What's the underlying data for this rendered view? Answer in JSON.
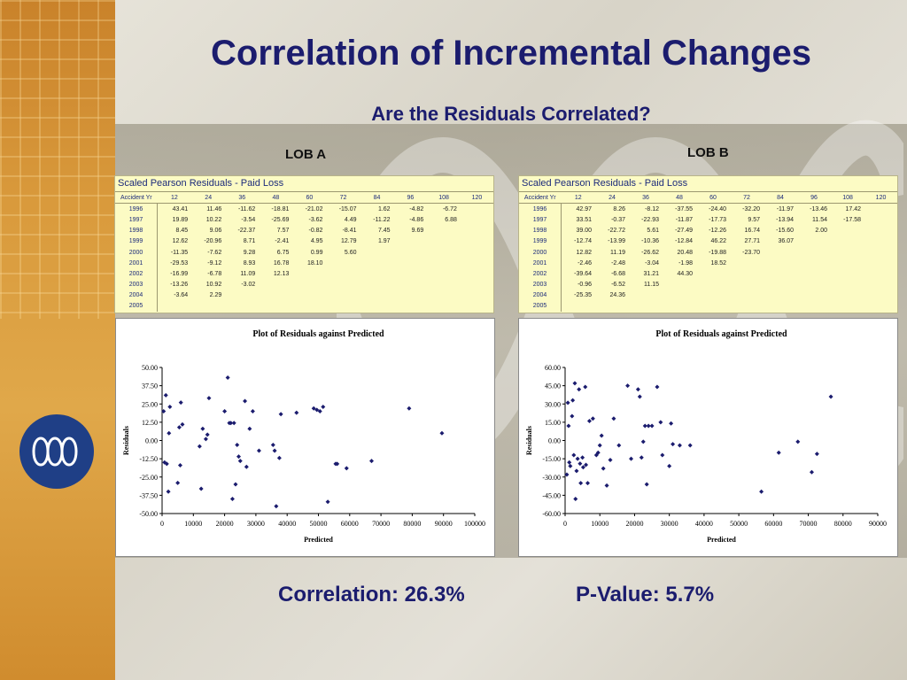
{
  "slide": {
    "title": "Correlation of Incremental Changes",
    "subtitle": "Are the Residuals Correlated?",
    "correlation_text": "Correlation:  26.3%",
    "pvalue_text": "P-Value:  5.7%",
    "logo_icon": "wave-logo-icon",
    "colors": {
      "title": "#1b1c6e",
      "table_bg": "#fcfbc4",
      "marker": "#1b1c6e",
      "logo": "#1f3f86"
    }
  },
  "lob_a": {
    "label": "LOB A",
    "table": {
      "title": "Scaled Pearson Residuals - Paid Loss",
      "corner": "Accident Yr",
      "columns": [
        "12",
        "24",
        "36",
        "48",
        "60",
        "72",
        "84",
        "96",
        "108",
        "120"
      ],
      "rows": [
        {
          "year": "1996",
          "values": [
            "43.41",
            "11.46",
            "-11.62",
            "-18.81",
            "-21.02",
            "-15.07",
            "1.62",
            "-4.82",
            "-6.72",
            ""
          ]
        },
        {
          "year": "1997",
          "values": [
            "19.89",
            "10.22",
            "-3.54",
            "-25.69",
            "-3.62",
            "4.49",
            "-11.22",
            "-4.86",
            "6.88",
            ""
          ]
        },
        {
          "year": "1998",
          "values": [
            "8.45",
            "9.06",
            "-22.37",
            "7.57",
            "-0.82",
            "-8.41",
            "7.45",
            "9.69",
            "",
            ""
          ]
        },
        {
          "year": "1999",
          "values": [
            "12.62",
            "-20.96",
            "8.71",
            "-2.41",
            "4.95",
            "12.79",
            "1.97",
            "",
            "",
            ""
          ]
        },
        {
          "year": "2000",
          "values": [
            "-11.35",
            "-7.62",
            "9.28",
            "6.75",
            "0.99",
            "5.60",
            "",
            "",
            "",
            ""
          ]
        },
        {
          "year": "2001",
          "values": [
            "-29.53",
            "-9.12",
            "8.93",
            "16.78",
            "18.10",
            "",
            "",
            "",
            "",
            ""
          ]
        },
        {
          "year": "2002",
          "values": [
            "-16.99",
            "-6.78",
            "11.09",
            "12.13",
            "",
            "",
            "",
            "",
            "",
            ""
          ]
        },
        {
          "year": "2003",
          "values": [
            "-13.26",
            "10.92",
            "-3.02",
            "",
            "",
            "",
            "",
            "",
            "",
            ""
          ]
        },
        {
          "year": "2004",
          "values": [
            "-3.64",
            "2.29",
            "",
            "",
            "",
            "",
            "",
            "",
            "",
            ""
          ]
        },
        {
          "year": "2005",
          "values": [
            "",
            "",
            "",
            "",
            "",
            "",
            "",
            "",
            "",
            ""
          ]
        }
      ]
    }
  },
  "lob_b": {
    "label": "LOB B",
    "table": {
      "title": "Scaled Pearson Residuals - Paid Loss",
      "corner": "Accident Yr",
      "columns": [
        "12",
        "24",
        "36",
        "48",
        "60",
        "72",
        "84",
        "96",
        "108",
        "120"
      ],
      "rows": [
        {
          "year": "1996",
          "values": [
            "42.97",
            "8.26",
            "-8.12",
            "-37.55",
            "-24.40",
            "-32.20",
            "-11.97",
            "-13.46",
            "17.42",
            ""
          ]
        },
        {
          "year": "1997",
          "values": [
            "33.51",
            "-0.37",
            "-22.93",
            "-11.87",
            "-17.73",
            "9.57",
            "-13.94",
            "11.54",
            "-17.58",
            ""
          ]
        },
        {
          "year": "1998",
          "values": [
            "39.00",
            "-22.72",
            "5.61",
            "-27.49",
            "-12.26",
            "16.74",
            "-15.60",
            "2.00",
            "",
            ""
          ]
        },
        {
          "year": "1999",
          "values": [
            "-12.74",
            "-13.99",
            "-10.36",
            "-12.84",
            "46.22",
            "27.71",
            "36.07",
            "",
            "",
            ""
          ]
        },
        {
          "year": "2000",
          "values": [
            "12.82",
            "11.19",
            "-26.62",
            "20.48",
            "-19.88",
            "-23.70",
            "",
            "",
            "",
            ""
          ]
        },
        {
          "year": "2001",
          "values": [
            "-2.46",
            "-2.48",
            "-3.04",
            "-1.98",
            "18.52",
            "",
            "",
            "",
            "",
            ""
          ]
        },
        {
          "year": "2002",
          "values": [
            "-39.64",
            "-6.68",
            "31.21",
            "44.30",
            "",
            "",
            "",
            "",
            "",
            ""
          ]
        },
        {
          "year": "2003",
          "values": [
            "-0.96",
            "-6.52",
            "11.15",
            "",
            "",
            "",
            "",
            "",
            "",
            ""
          ]
        },
        {
          "year": "2004",
          "values": [
            "-25.35",
            "24.36",
            "",
            "",
            "",
            "",
            "",
            "",
            "",
            ""
          ]
        },
        {
          "year": "2005",
          "values": [
            "",
            "",
            "",
            "",
            "",
            "",
            "",
            "",
            "",
            ""
          ]
        }
      ]
    }
  },
  "chart_data": [
    {
      "type": "scatter",
      "title": "Plot of Residuals against Predicted",
      "xlabel": "Predicted",
      "ylabel": "Residuals",
      "xlim": [
        0,
        100000
      ],
      "ylim": [
        -50,
        50
      ],
      "x_ticks": [
        "0",
        "10000",
        "20000",
        "30000",
        "40000",
        "50000",
        "60000",
        "70000",
        "80000",
        "90000",
        "100000"
      ],
      "y_ticks": [
        "50.00",
        "37.50",
        "25.00",
        "12.50",
        "0.00",
        "-12.50",
        "-25.00",
        "-37.50",
        "-50.00"
      ],
      "grid": false,
      "points": [
        [
          500,
          20
        ],
        [
          800,
          -15
        ],
        [
          1200,
          31
        ],
        [
          1500,
          -16
        ],
        [
          2000,
          -35
        ],
        [
          2200,
          5
        ],
        [
          2500,
          23
        ],
        [
          5000,
          -29
        ],
        [
          5500,
          9
        ],
        [
          6000,
          26
        ],
        [
          6500,
          11
        ],
        [
          5800,
          -17
        ],
        [
          12000,
          -4
        ],
        [
          12500,
          -33
        ],
        [
          13000,
          8
        ],
        [
          14000,
          1
        ],
        [
          15000,
          29
        ],
        [
          14500,
          4
        ],
        [
          20000,
          20
        ],
        [
          21000,
          43
        ],
        [
          21500,
          12
        ],
        [
          22000,
          12
        ],
        [
          22500,
          -40
        ],
        [
          23000,
          12
        ],
        [
          23500,
          -30
        ],
        [
          24000,
          -3
        ],
        [
          24500,
          -11
        ],
        [
          25000,
          -14
        ],
        [
          26500,
          27
        ],
        [
          27000,
          -18
        ],
        [
          28000,
          8
        ],
        [
          29000,
          20
        ],
        [
          31000,
          -7
        ],
        [
          35500,
          -3
        ],
        [
          36000,
          -7
        ],
        [
          36500,
          -45
        ],
        [
          37500,
          -12
        ],
        [
          38000,
          18
        ],
        [
          43000,
          19
        ],
        [
          48500,
          22
        ],
        [
          49500,
          21
        ],
        [
          50500,
          20
        ],
        [
          51500,
          23
        ],
        [
          53000,
          -42
        ],
        [
          55500,
          -16
        ],
        [
          56000,
          -16
        ],
        [
          59000,
          -19
        ],
        [
          67000,
          -14
        ],
        [
          79000,
          22
        ],
        [
          89500,
          5
        ]
      ]
    },
    {
      "type": "scatter",
      "title": "Plot of Residuals against Predicted",
      "xlabel": "Predicted",
      "ylabel": "Residuals",
      "xlim": [
        0,
        90000
      ],
      "ylim": [
        -60,
        60
      ],
      "x_ticks": [
        "0",
        "10000",
        "20000",
        "30000",
        "40000",
        "50000",
        "60000",
        "70000",
        "80000",
        "90000"
      ],
      "y_ticks": [
        "60.00",
        "45.00",
        "30.00",
        "15.00",
        "0.00",
        "-15.00",
        "-30.00",
        "-45.00",
        "-60.00"
      ],
      "grid": false,
      "points": [
        [
          500,
          -28
        ],
        [
          800,
          31
        ],
        [
          1000,
          12
        ],
        [
          1200,
          -18
        ],
        [
          1500,
          -21
        ],
        [
          2000,
          20
        ],
        [
          2200,
          33
        ],
        [
          2500,
          -12
        ],
        [
          2800,
          47
        ],
        [
          3000,
          -48
        ],
        [
          3300,
          -25
        ],
        [
          3600,
          -15
        ],
        [
          4000,
          42
        ],
        [
          4300,
          -19
        ],
        [
          4500,
          -35
        ],
        [
          5000,
          -14
        ],
        [
          5200,
          -22
        ],
        [
          5800,
          44
        ],
        [
          6000,
          -20
        ],
        [
          6500,
          -35
        ],
        [
          7000,
          16
        ],
        [
          8000,
          18
        ],
        [
          9000,
          -12
        ],
        [
          9500,
          -10
        ],
        [
          10000,
          -4
        ],
        [
          10500,
          4
        ],
        [
          11000,
          -23
        ],
        [
          12000,
          -37
        ],
        [
          13000,
          -16
        ],
        [
          14000,
          18
        ],
        [
          15500,
          -4
        ],
        [
          18000,
          45
        ],
        [
          19000,
          -15
        ],
        [
          21000,
          42
        ],
        [
          21500,
          36
        ],
        [
          22000,
          -14
        ],
        [
          22500,
          -1
        ],
        [
          23000,
          12
        ],
        [
          23500,
          -36
        ],
        [
          24000,
          12
        ],
        [
          25000,
          12
        ],
        [
          26500,
          44
        ],
        [
          27500,
          15
        ],
        [
          28000,
          -12
        ],
        [
          30000,
          -21
        ],
        [
          30500,
          14
        ],
        [
          31000,
          -3
        ],
        [
          33000,
          -4
        ],
        [
          36000,
          -4
        ],
        [
          56500,
          -42
        ],
        [
          61500,
          -10
        ],
        [
          67000,
          -1
        ],
        [
          71000,
          -26
        ],
        [
          72500,
          -11
        ],
        [
          76500,
          36
        ]
      ]
    }
  ]
}
